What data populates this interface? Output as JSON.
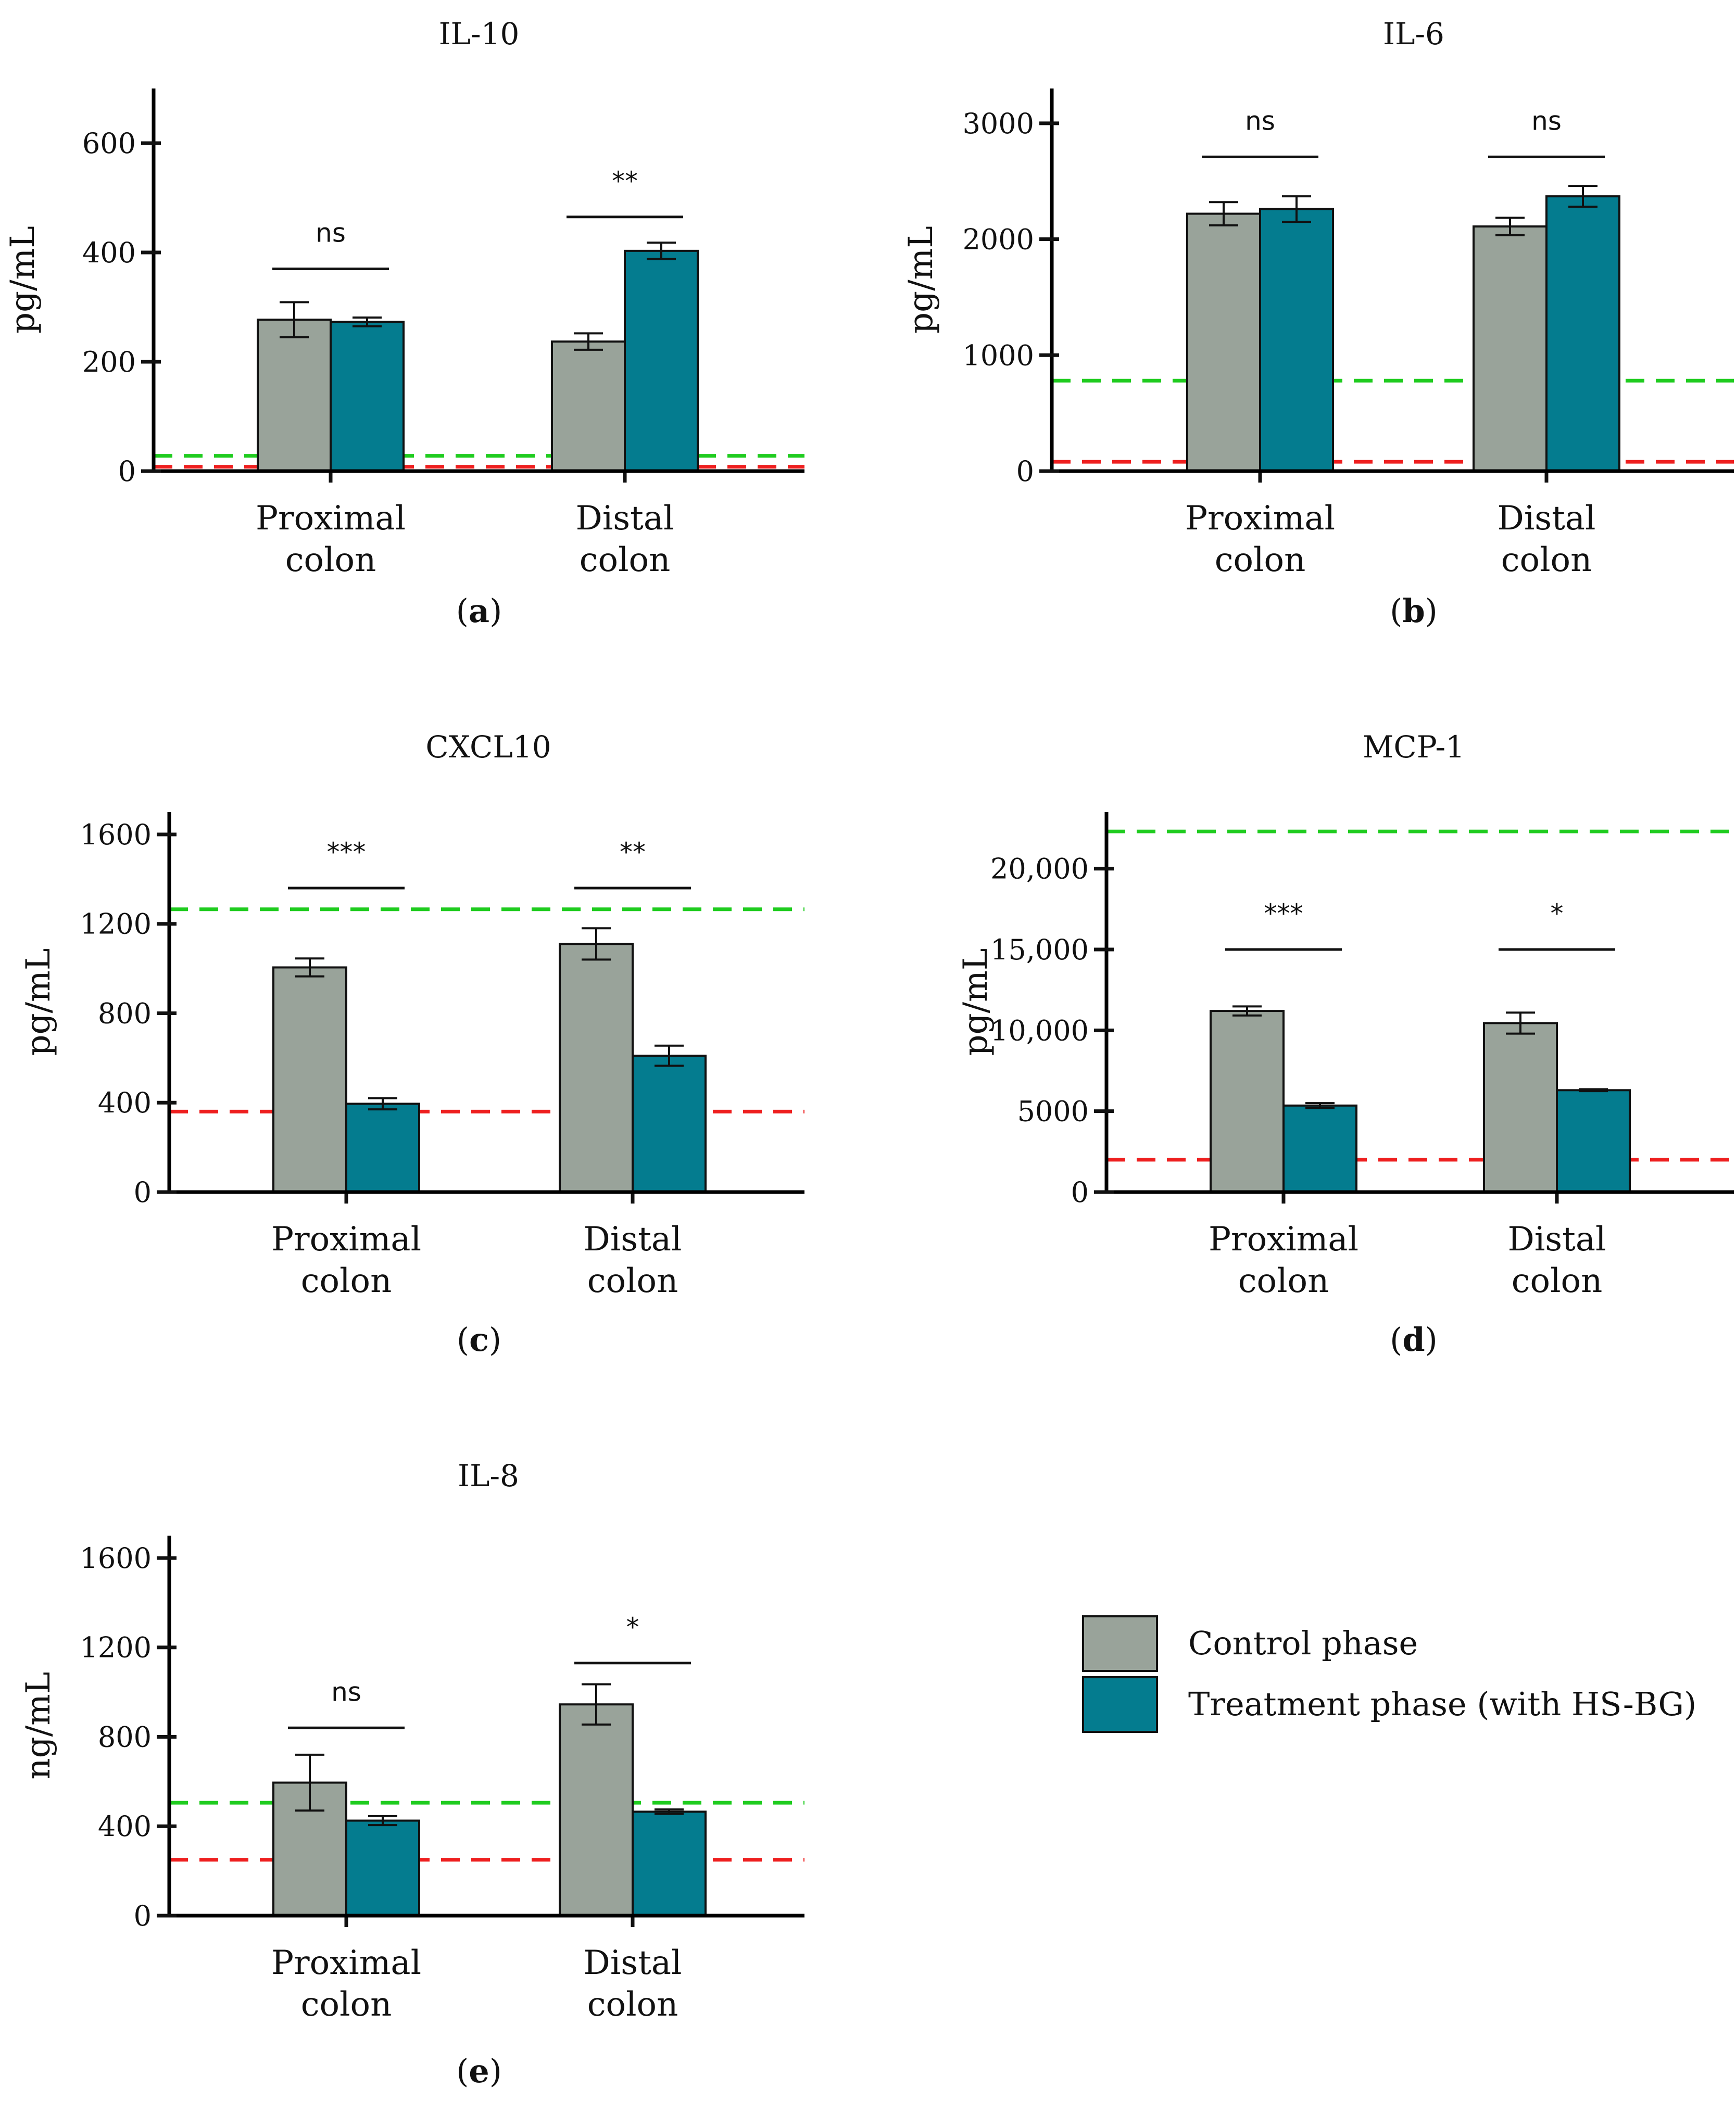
{
  "colors": {
    "control": "#99a39a",
    "treatment": "#047c8f",
    "green_line": "#1fcc1f",
    "red_line": "#ee1f1f",
    "axis": "#000000"
  },
  "legend": {
    "items": [
      {
        "label": "Control phase",
        "color": "#99a39a"
      },
      {
        "label": "Treatment phase (with HS-BG)",
        "color": "#047c8f"
      }
    ]
  },
  "chart_data": [
    {
      "id": "a",
      "type": "bar",
      "panel_label": "a",
      "title": "IL-10",
      "ylabel": "pg/mL",
      "ylim": [
        0,
        700
      ],
      "yticks": [
        0,
        200,
        400,
        600
      ],
      "ytick_labels": [
        "0",
        "200",
        "400",
        "600"
      ],
      "categories": [
        [
          "Proximal",
          "colon"
        ],
        [
          "Distal",
          "colon"
        ]
      ],
      "series": [
        {
          "name": "Control phase",
          "values": [
            277,
            237
          ],
          "errors": [
            32,
            15
          ]
        },
        {
          "name": "Treatment phase (with HS-BG)",
          "values": [
            273,
            403
          ],
          "errors": [
            8,
            15
          ]
        }
      ],
      "significance": [
        "ns",
        "**"
      ],
      "sig_heights": [
        370,
        465
      ],
      "ref_lines": {
        "green": 28,
        "red": 8
      }
    },
    {
      "id": "b",
      "type": "bar",
      "panel_label": "b",
      "title": "IL-6",
      "ylabel": "pg/mL",
      "ylim": [
        0,
        3300
      ],
      "yticks": [
        0,
        1000,
        2000,
        3000
      ],
      "ytick_labels": [
        "0",
        "1000",
        "2000",
        "3000"
      ],
      "categories": [
        [
          "Proximal",
          "colon"
        ],
        [
          "Distal",
          "colon"
        ]
      ],
      "series": [
        {
          "name": "Control phase",
          "values": [
            2220,
            2110
          ],
          "errors": [
            100,
            75
          ]
        },
        {
          "name": "Treatment phase (with HS-BG)",
          "values": [
            2260,
            2370
          ],
          "errors": [
            110,
            90
          ]
        }
      ],
      "significance": [
        "ns",
        "ns"
      ],
      "sig_heights": [
        2710,
        2710
      ],
      "ref_lines": {
        "green": 780,
        "red": 80
      }
    },
    {
      "id": "c",
      "type": "bar",
      "panel_label": "c",
      "title": "CXCL10",
      "ylabel": "pg/mL",
      "ylim": [
        0,
        1700
      ],
      "yticks": [
        0,
        400,
        800,
        1200,
        1600
      ],
      "ytick_labels": [
        "0",
        "400",
        "800",
        "1200",
        "1600"
      ],
      "categories": [
        [
          "Proximal",
          "colon"
        ],
        [
          "Distal",
          "colon"
        ]
      ],
      "series": [
        {
          "name": "Control phase",
          "values": [
            1005,
            1110
          ],
          "errors": [
            40,
            70
          ]
        },
        {
          "name": "Treatment phase (with HS-BG)",
          "values": [
            395,
            610
          ],
          "errors": [
            25,
            45
          ]
        }
      ],
      "significance": [
        "***",
        "**"
      ],
      "sig_heights": [
        1360,
        1360
      ],
      "ref_lines": {
        "green": 1265,
        "red": 360
      }
    },
    {
      "id": "d",
      "type": "bar",
      "panel_label": "d",
      "title": "MCP-1",
      "ylabel": "pg/mL",
      "ylim": [
        0,
        23500
      ],
      "yticks": [
        0,
        5000,
        10000,
        15000,
        20000
      ],
      "ytick_labels": [
        "0",
        "5000",
        "10,000",
        "15,000",
        "20,000"
      ],
      "categories": [
        [
          "Proximal",
          "colon"
        ],
        [
          "Distal",
          "colon"
        ]
      ],
      "series": [
        {
          "name": "Control phase",
          "values": [
            11200,
            10450
          ],
          "errors": [
            280,
            650
          ]
        },
        {
          "name": "Treatment phase (with HS-BG)",
          "values": [
            5350,
            6300
          ],
          "errors": [
            150,
            60
          ]
        }
      ],
      "significance": [
        "***",
        "*"
      ],
      "sig_heights": [
        15000,
        15000
      ],
      "ref_lines": {
        "green": 22300,
        "red": 2000
      }
    },
    {
      "id": "e",
      "type": "bar",
      "panel_label": "e",
      "title": "IL-8",
      "ylabel": "ng/mL",
      "ylim": [
        0,
        1700
      ],
      "yticks": [
        0,
        400,
        800,
        1200,
        1600
      ],
      "ytick_labels": [
        "0",
        "400",
        "800",
        "1200",
        "1600"
      ],
      "categories": [
        [
          "Proximal",
          "colon"
        ],
        [
          "Distal",
          "colon"
        ]
      ],
      "series": [
        {
          "name": "Control phase",
          "values": [
            595,
            945
          ],
          "errors": [
            125,
            90
          ]
        },
        {
          "name": "Treatment phase (with HS-BG)",
          "values": [
            425,
            465
          ],
          "errors": [
            20,
            10
          ]
        }
      ],
      "significance": [
        "ns",
        "*"
      ],
      "sig_heights": [
        840,
        1130
      ],
      "ref_lines": {
        "green": 505,
        "red": 250
      }
    }
  ]
}
